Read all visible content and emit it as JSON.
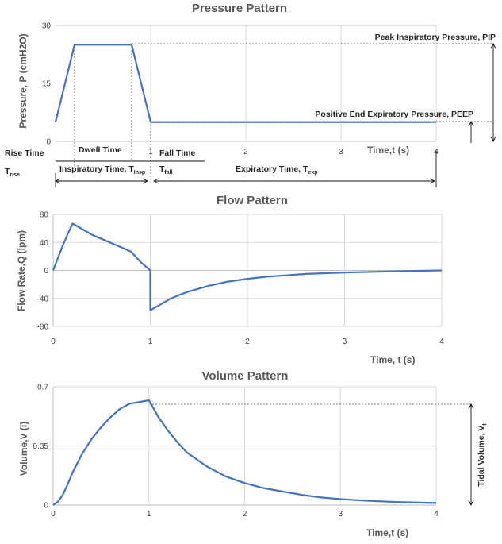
{
  "chart_data": [
    {
      "type": "line",
      "title": "Pressure Pattern",
      "xlabel": "Time,t (s)",
      "ylabel": "Pressure, P (cmH2O)",
      "xlim": [
        0,
        4
      ],
      "ylim": [
        0,
        30
      ],
      "x_ticks": [
        "1",
        "2",
        "3",
        "4"
      ],
      "y_ticks": [
        "0",
        "15",
        "30"
      ],
      "grid": "vertical",
      "series": [
        {
          "x": [
            0,
            0.2,
            0.8,
            1.0,
            4.0
          ],
          "y": [
            5,
            25,
            25,
            5,
            5
          ]
        }
      ],
      "annotations": {
        "pip": "Peak Inspiratory Pressure, PIP",
        "peep": "Positive End Expiratory Pressure, PEEP",
        "rise_time": "Rise Time",
        "rise_symbol": "T",
        "rise_sub": "rise",
        "dwell_time": "Dwell Time",
        "fall_time": "Fall Time",
        "fall_symbol": "T",
        "fall_sub": "fall",
        "insp_time": "Inspiratory Time, T",
        "insp_sub": "Insp",
        "exp_time": "Expiratory Time, T",
        "exp_sub": "exp"
      }
    },
    {
      "type": "line",
      "title": "Flow Pattern",
      "xlabel": "Time, t (s)",
      "ylabel": "Flow Rate,Q (lpm)",
      "xlim": [
        0,
        4
      ],
      "ylim": [
        -80,
        80
      ],
      "x_ticks": [
        "0",
        "1",
        "2",
        "3",
        "4"
      ],
      "y_ticks": [
        "-80",
        "-40",
        "0",
        "40",
        "80"
      ],
      "grid": "both",
      "series": [
        {
          "x": [
            0,
            0.05,
            0.1,
            0.15,
            0.2,
            0.3,
            0.4,
            0.5,
            0.6,
            0.7,
            0.8,
            0.9,
            1.0,
            1.0,
            1.1,
            1.2,
            1.3,
            1.4,
            1.5,
            1.6,
            1.8,
            2.0,
            2.2,
            2.4,
            2.6,
            2.8,
            3.0,
            3.3,
            3.6,
            4.0
          ],
          "y": [
            0,
            18,
            36,
            52,
            67,
            59,
            51,
            45,
            39,
            33,
            27,
            12,
            0,
            -57,
            -49,
            -41,
            -35,
            -30,
            -26,
            -22,
            -16,
            -12,
            -9,
            -7,
            -5,
            -4,
            -3,
            -2,
            -1,
            0
          ]
        }
      ]
    },
    {
      "type": "line",
      "title": "Volume Pattern",
      "xlabel": "Time,t (s)",
      "ylabel": "Volume,V (l)",
      "xlim": [
        0,
        4
      ],
      "ylim": [
        0,
        0.7
      ],
      "x_ticks": [
        "0",
        "1",
        "2",
        "3",
        "4"
      ],
      "y_ticks": [
        "0",
        "0.35",
        "0.7"
      ],
      "grid": "both",
      "series": [
        {
          "x": [
            0,
            0.05,
            0.1,
            0.15,
            0.2,
            0.3,
            0.4,
            0.5,
            0.6,
            0.7,
            0.8,
            0.9,
            1.0,
            1.1,
            1.2,
            1.3,
            1.4,
            1.5,
            1.6,
            1.8,
            2.0,
            2.2,
            2.4,
            2.6,
            2.8,
            3.0,
            3.3,
            3.6,
            4.0
          ],
          "y": [
            0,
            0.02,
            0.06,
            0.12,
            0.19,
            0.3,
            0.39,
            0.46,
            0.52,
            0.57,
            0.6,
            0.61,
            0.62,
            0.52,
            0.44,
            0.37,
            0.31,
            0.27,
            0.23,
            0.17,
            0.13,
            0.1,
            0.08,
            0.06,
            0.045,
            0.035,
            0.025,
            0.018,
            0.012
          ]
        }
      ],
      "annotations": {
        "tidal": "Tidal Volume, V",
        "tidal_sub": "t"
      }
    }
  ],
  "colors": {
    "series": "#4472c4",
    "grid": "#d9d9d9"
  }
}
